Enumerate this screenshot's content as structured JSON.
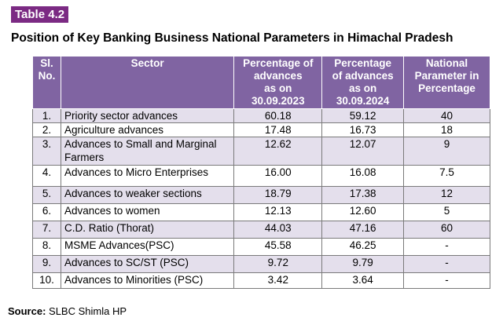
{
  "table_label": "Table 4.2",
  "title": "Position of Key Banking Business National Parameters in Himachal Pradesh",
  "headers": {
    "sl": [
      "Sl.",
      "No."
    ],
    "sector": "Sector",
    "pct_2023": [
      "Percentage of",
      "advances",
      "as on",
      "30.09.2023"
    ],
    "pct_2024": [
      "Percentage",
      "of advances",
      "as on",
      "30.09.2024"
    ],
    "national": [
      "National",
      "Parameter  in",
      "Percentage"
    ]
  },
  "rows": [
    {
      "sl": "1.",
      "sector": "Priority sector advances",
      "pct_2023": "60.18",
      "pct_2024": "59.12",
      "national": "40"
    },
    {
      "sl": "2.",
      "sector": "Agriculture advances",
      "pct_2023": "17.48",
      "pct_2024": "16.73",
      "national": "18"
    },
    {
      "sl": "3.",
      "sector": "Advances to Small and Marginal Farmers",
      "pct_2023": "12.62",
      "pct_2024": "12.07",
      "national": "9"
    },
    {
      "sl": "4.",
      "sector": "Advances to Micro Enterprises",
      "pct_2023": "16.00",
      "pct_2024": "16.08",
      "national": "7.5"
    },
    {
      "sl": "5.",
      "sector": "Advances to weaker sections",
      "pct_2023": "18.79",
      "pct_2024": "17.38",
      "national": "12"
    },
    {
      "sl": "6.",
      "sector": "Advances to women",
      "pct_2023": "12.13",
      "pct_2024": "12.60",
      "national": "5"
    },
    {
      "sl": "7.",
      "sector": "C.D. Ratio (Thorat)",
      "pct_2023": "44.03",
      "pct_2024": "47.16",
      "national": "60"
    },
    {
      "sl": "8.",
      "sector": "MSME Advances(PSC)",
      "pct_2023": "45.58",
      "pct_2024": "46.25",
      "national": "-"
    },
    {
      "sl": "9.",
      "sector": "Advances to SC/ST (PSC)",
      "pct_2023": "9.72",
      "pct_2024": "9.79",
      "national": "-"
    },
    {
      "sl": "10.",
      "sector": "Advances to Minorities (PSC)",
      "pct_2023": "3.42",
      "pct_2024": "3.64",
      "national": "-"
    }
  ],
  "source_label": "Source:",
  "source_text": " SLBC Shimla HP",
  "colors": {
    "header_bg": "#8064a2",
    "badge_bg": "#7b2a83",
    "band_bg": "#e4dfec"
  }
}
